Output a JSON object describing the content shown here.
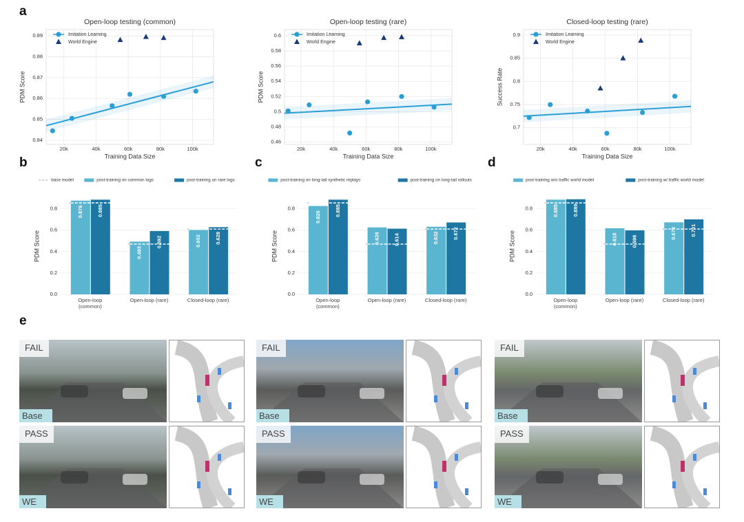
{
  "panel_labels": [
    "a",
    "b",
    "c",
    "d",
    "e"
  ],
  "chart_data": [
    {
      "type": "scatter",
      "title": "Open-loop testing (common)",
      "xlabel": "Training Data Size",
      "ylabel": "PDM Score",
      "xlim": [
        9000,
        113000
      ],
      "xticks": [
        {
          "value": 20000,
          "label": "20k"
        },
        {
          "value": 40000,
          "label": "40k"
        },
        {
          "value": 60000,
          "label": "60k"
        },
        {
          "value": 80000,
          "label": "80k"
        },
        {
          "value": 100000,
          "label": "100k"
        }
      ],
      "ylim": [
        0.838,
        0.893
      ],
      "yticks": [
        0.84,
        0.85,
        0.86,
        0.87,
        0.88,
        0.89
      ],
      "grid": true,
      "legend": "upper left",
      "series": [
        {
          "name": "Imitation Learning",
          "color": "#2a9fd6",
          "marker": "circle",
          "x": [
            13000,
            25000,
            50000,
            61000,
            82000,
            102000
          ],
          "values": [
            0.8445,
            0.8505,
            0.8565,
            0.862,
            0.861,
            0.8635
          ]
        },
        {
          "name": "World Engine",
          "color": "#1b3a7a",
          "marker": "triangle",
          "x": [
            55000,
            71000,
            82000
          ],
          "values": [
            0.888,
            0.8895,
            0.889
          ]
        }
      ],
      "fit": {
        "color": "#2a9fd6",
        "x": [
          9000,
          113000
        ],
        "values": [
          0.847,
          0.868
        ]
      }
    },
    {
      "type": "scatter",
      "title": "Open-loop testing (rare)",
      "xlabel": "Training Data Size",
      "ylabel": "PDM Score",
      "xlim": [
        9800,
        113000
      ],
      "xticks": [
        {
          "value": 20000,
          "label": "20k"
        },
        {
          "value": 40000,
          "label": "40k"
        },
        {
          "value": 60000,
          "label": "60k"
        },
        {
          "value": 80000,
          "label": "80k"
        },
        {
          "value": 100000,
          "label": "100k"
        }
      ],
      "ylim": [
        0.457,
        0.608
      ],
      "yticks": [
        0.46,
        0.48,
        0.5,
        0.52,
        0.54,
        0.56,
        0.58,
        0.6
      ],
      "grid": true,
      "legend": "upper left",
      "series": [
        {
          "name": "Imitation Learning",
          "color": "#2a9fd6",
          "marker": "circle",
          "x": [
            12000,
            25000,
            50000,
            61000,
            82000,
            102000
          ],
          "values": [
            0.501,
            0.509,
            0.472,
            0.513,
            0.52,
            0.506
          ]
        },
        {
          "name": "World Engine",
          "color": "#1b3a7a",
          "marker": "triangle",
          "x": [
            56000,
            71000,
            82000
          ],
          "values": [
            0.59,
            0.597,
            0.598
          ]
        }
      ],
      "fit": {
        "color": "#2a9fd6",
        "x": [
          9800,
          113000
        ],
        "values": [
          0.498,
          0.51
        ]
      }
    },
    {
      "type": "scatter",
      "title": "Closed-loop testing (rare)",
      "xlabel": "Training Data Size",
      "ylabel": "Success Rate",
      "xlim": [
        9500,
        113000
      ],
      "xticks": [
        {
          "value": 20000,
          "label": "20k"
        },
        {
          "value": 40000,
          "label": "40k"
        },
        {
          "value": 60000,
          "label": "60k"
        },
        {
          "value": 80000,
          "label": "80k"
        },
        {
          "value": 100000,
          "label": "100k"
        }
      ],
      "ylim": [
        0.664,
        0.912
      ],
      "yticks": [
        0.7,
        0.75,
        0.8,
        0.85,
        0.9
      ],
      "grid": true,
      "legend": "upper left",
      "series": [
        {
          "name": "Imitation Learning",
          "color": "#2a9fd6",
          "marker": "circle",
          "x": [
            13000,
            26000,
            49000,
            61000,
            83000,
            103000
          ],
          "values": [
            0.722,
            0.75,
            0.736,
            0.688,
            0.733,
            0.768
          ]
        },
        {
          "name": "World Engine",
          "color": "#1b3a7a",
          "marker": "triangle",
          "x": [
            57000,
            71000,
            82000
          ],
          "values": [
            0.785,
            0.85,
            0.888
          ]
        }
      ],
      "fit": {
        "color": "#2a9fd6",
        "x": [
          9500,
          113000
        ],
        "values": [
          0.725,
          0.746
        ]
      }
    },
    {
      "type": "bar",
      "ylabel": "PDM Score",
      "categories": [
        "Open-loop (common)",
        "Open-loop (rare)",
        "Closed-loop (rare)"
      ],
      "ylim": [
        0,
        0.9
      ],
      "yticks": [
        {
          "value": 0,
          "label": "0.0"
        },
        0.2,
        0.4,
        0.6,
        0.8
      ],
      "grid": true,
      "baseline": {
        "name": "base model",
        "values": [
          0.855,
          0.47,
          0.61
        ]
      },
      "series": [
        {
          "name": "post-training on common logs",
          "color": "#5ab6d0",
          "values": [
            0.876,
            0.493,
            0.602
          ]
        },
        {
          "name": "post-training on rare logs",
          "color": "#1e77a3",
          "values": [
            0.885,
            0.592,
            0.628
          ]
        }
      ]
    },
    {
      "type": "bar",
      "ylabel": "PDM Score",
      "categories": [
        "Open-loop (common)",
        "Open-loop (rare)",
        "Closed-loop (rare)"
      ],
      "ylim": [
        0,
        0.9
      ],
      "yticks": [
        {
          "value": 0,
          "label": "0.0"
        },
        0.2,
        0.4,
        0.6,
        0.8
      ],
      "grid": true,
      "baseline": {
        "values": [
          0.855,
          0.47,
          0.61
        ]
      },
      "series": [
        {
          "name": "post-training on long-tail synthetic replays",
          "color": "#5ab6d0",
          "values": [
            0.826,
            0.626,
            0.632
          ]
        },
        {
          "name": "post-training on long-tail rollouts",
          "color": "#1e77a3",
          "values": [
            0.885,
            0.614,
            0.672
          ]
        }
      ]
    },
    {
      "type": "bar",
      "ylabel": "PDM Score",
      "categories": [
        "Open-loop (common)",
        "Open-loop (rare)",
        "Closed-loop (rare)"
      ],
      "ylim": [
        0,
        0.9
      ],
      "yticks": [
        {
          "value": 0,
          "label": "0.0"
        },
        0.2,
        0.4,
        0.6,
        0.8
      ],
      "grid": true,
      "baseline": {
        "values": [
          0.855,
          0.47,
          0.61
        ]
      },
      "series": [
        {
          "name": "post-training w/o traffic world model",
          "color": "#5ab6d0",
          "values": [
            0.885,
            0.618,
            0.673
          ]
        },
        {
          "name": "post-training w/ traffic world model",
          "color": "#1e77a3",
          "values": [
            0.889,
            0.598,
            0.701
          ]
        }
      ]
    }
  ],
  "scenes": [
    {
      "rows": [
        {
          "status": "FAIL",
          "model": "Base"
        },
        {
          "status": "PASS",
          "model": "WE"
        }
      ]
    },
    {
      "rows": [
        {
          "status": "FAIL",
          "model": "Base"
        },
        {
          "status": "PASS",
          "model": "WE"
        }
      ]
    },
    {
      "rows": [
        {
          "status": "FAIL",
          "model": "Base"
        },
        {
          "status": "PASS",
          "model": "WE"
        }
      ]
    }
  ]
}
